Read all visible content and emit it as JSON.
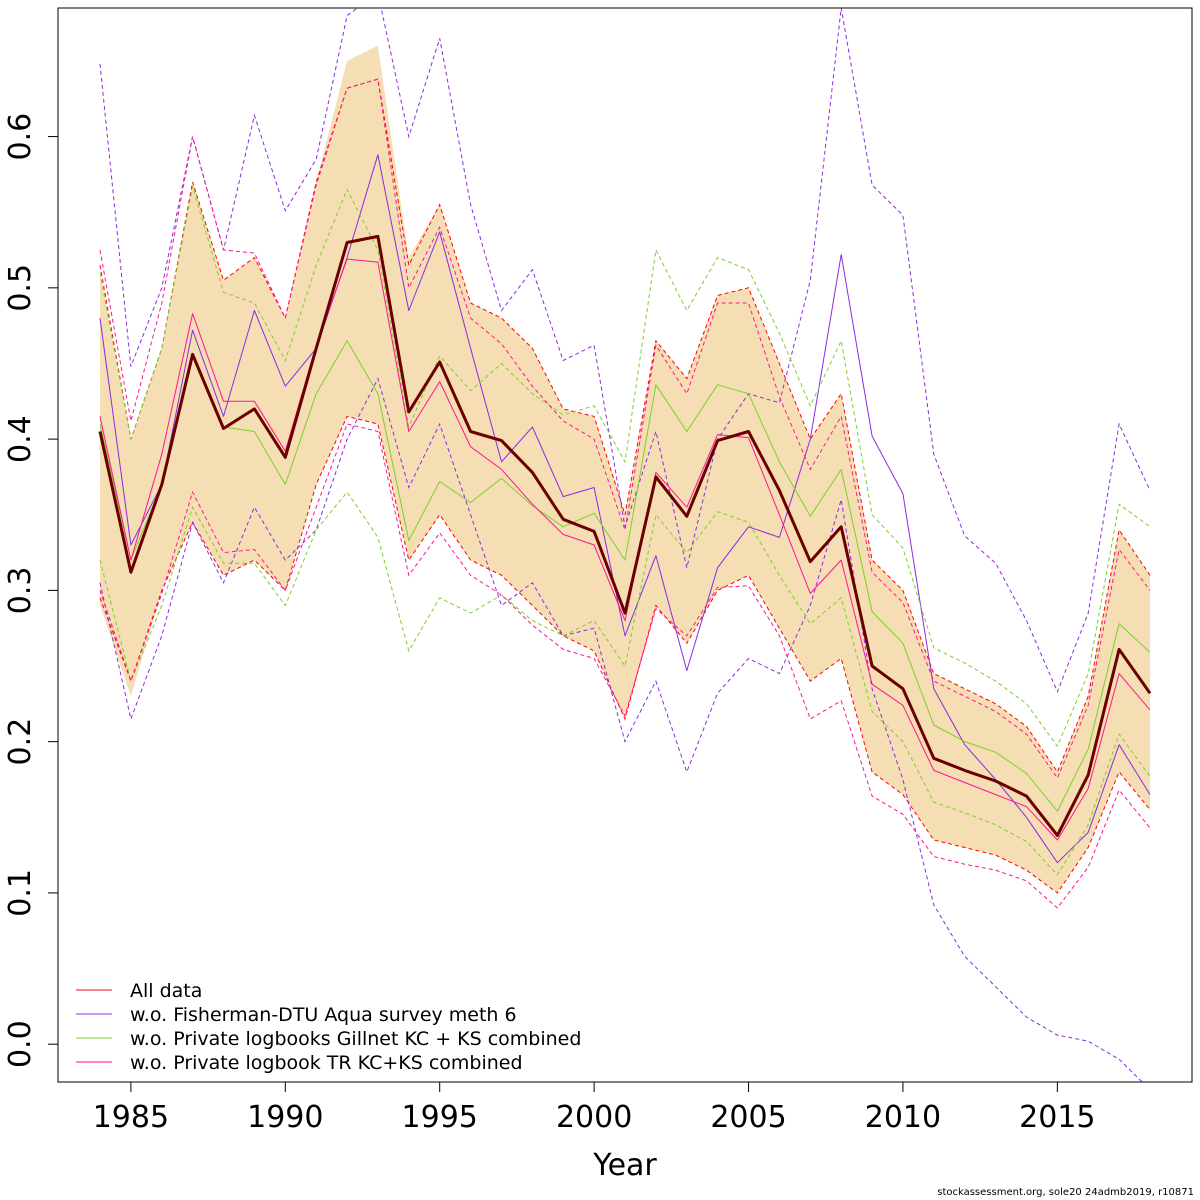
{
  "chart_data": {
    "type": "line",
    "title": "",
    "xlabel": "Year",
    "ylabel": "",
    "xlim": [
      1984,
      2018
    ],
    "ylim": [
      -0.025,
      0.685
    ],
    "x_ticks": [
      1985,
      1990,
      1995,
      2000,
      2005,
      2010,
      2015
    ],
    "y_ticks": [
      0.0,
      0.1,
      0.2,
      0.3,
      0.4,
      0.5,
      0.6
    ],
    "y_tick_labels": [
      "0.0",
      "0.1",
      "0.2",
      "0.3",
      "0.4",
      "0.5",
      "0.6"
    ],
    "grid": false,
    "legend_position": "bottom-left",
    "x": [
      1984,
      1985,
      1986,
      1987,
      1988,
      1989,
      1990,
      1991,
      1992,
      1993,
      1994,
      1995,
      1996,
      1997,
      1998,
      1999,
      2000,
      2001,
      2002,
      2003,
      2004,
      2005,
      2006,
      2007,
      2008,
      2009,
      2010,
      2011,
      2012,
      2013,
      2014,
      2015,
      2016,
      2017,
      2018
    ],
    "band": {
      "fill_color": "#f5deb3",
      "upper": [
        0.51,
        0.4,
        0.46,
        0.57,
        0.505,
        0.52,
        0.48,
        0.57,
        0.65,
        0.66,
        0.52,
        0.555,
        0.49,
        0.48,
        0.46,
        0.42,
        0.415,
        0.35,
        0.465,
        0.44,
        0.495,
        0.5,
        0.45,
        0.4,
        0.43,
        0.32,
        0.3,
        0.245,
        0.235,
        0.225,
        0.21,
        0.18,
        0.23,
        0.34,
        0.31
      ],
      "lower": [
        0.29,
        0.23,
        0.3,
        0.345,
        0.31,
        0.32,
        0.3,
        0.37,
        0.415,
        0.41,
        0.32,
        0.35,
        0.32,
        0.31,
        0.29,
        0.27,
        0.26,
        0.215,
        0.29,
        0.265,
        0.3,
        0.31,
        0.275,
        0.24,
        0.255,
        0.18,
        0.165,
        0.135,
        0.13,
        0.125,
        0.115,
        0.1,
        0.13,
        0.18,
        0.155
      ]
    },
    "series": [
      {
        "name": "All data",
        "color": "#ff0000",
        "values": [
          0.405,
          0.312,
          0.37,
          0.456,
          0.407,
          0.42,
          0.388,
          0.46,
          0.53,
          0.534,
          0.418,
          0.451,
          0.405,
          0.399,
          0.378,
          0.347,
          0.339,
          0.285,
          0.375,
          0.349,
          0.399,
          0.405,
          0.366,
          0.319,
          0.342,
          0.25,
          0.235,
          0.189,
          0.181,
          0.174,
          0.164,
          0.138,
          0.178,
          0.261,
          0.232
        ],
        "upper": [
          0.515,
          0.4,
          0.46,
          0.57,
          0.505,
          0.52,
          0.48,
          0.57,
          0.632,
          0.638,
          0.515,
          0.555,
          0.49,
          0.48,
          0.46,
          0.42,
          0.415,
          0.35,
          0.465,
          0.44,
          0.495,
          0.5,
          0.45,
          0.4,
          0.43,
          0.32,
          0.3,
          0.245,
          0.235,
          0.225,
          0.21,
          0.18,
          0.23,
          0.34,
          0.31
        ],
        "lower": [
          0.295,
          0.24,
          0.3,
          0.345,
          0.31,
          0.32,
          0.3,
          0.37,
          0.415,
          0.41,
          0.32,
          0.35,
          0.32,
          0.31,
          0.29,
          0.27,
          0.26,
          0.215,
          0.29,
          0.265,
          0.3,
          0.31,
          0.275,
          0.24,
          0.255,
          0.18,
          0.165,
          0.135,
          0.13,
          0.125,
          0.115,
          0.1,
          0.13,
          0.18,
          0.155
        ]
      },
      {
        "name": "w.o. Fisherman-DTU Aqua survey meth 6",
        "color": "#8b2be2",
        "values": [
          0.48,
          0.33,
          0.37,
          0.472,
          0.415,
          0.485,
          0.435,
          0.46,
          0.52,
          0.588,
          0.485,
          0.537,
          0.46,
          0.385,
          0.408,
          0.362,
          0.368,
          0.27,
          0.323,
          0.247,
          0.315,
          0.342,
          0.335,
          0.4,
          0.522,
          0.402,
          0.364,
          0.235,
          0.198,
          0.175,
          0.15,
          0.12,
          0.14,
          0.198,
          0.165
        ],
        "upper": [
          0.648,
          0.448,
          0.5,
          0.6,
          0.525,
          0.614,
          0.551,
          0.585,
          0.68,
          0.695,
          0.6,
          0.665,
          0.555,
          0.485,
          0.512,
          0.452,
          0.462,
          0.342,
          0.405,
          0.315,
          0.4,
          0.43,
          0.424,
          0.505,
          0.685,
          0.568,
          0.548,
          0.39,
          0.336,
          0.318,
          0.28,
          0.233,
          0.285,
          0.41,
          0.366
        ],
        "lower": [
          0.305,
          0.215,
          0.27,
          0.345,
          0.305,
          0.355,
          0.32,
          0.34,
          0.4,
          0.44,
          0.368,
          0.41,
          0.35,
          0.29,
          0.305,
          0.27,
          0.275,
          0.2,
          0.24,
          0.18,
          0.232,
          0.255,
          0.245,
          0.29,
          0.36,
          0.235,
          0.175,
          0.092,
          0.058,
          0.038,
          0.018,
          0.006,
          0.002,
          -0.01,
          -0.03
        ]
      },
      {
        "name": "w.o. Private logbooks Gillnet KC + KS combined",
        "color": "#7cd02a",
        "values": [
          0.41,
          0.32,
          0.37,
          0.455,
          0.408,
          0.405,
          0.37,
          0.43,
          0.465,
          0.43,
          0.333,
          0.372,
          0.358,
          0.374,
          0.356,
          0.342,
          0.351,
          0.32,
          0.436,
          0.405,
          0.436,
          0.43,
          0.385,
          0.349,
          0.38,
          0.286,
          0.265,
          0.211,
          0.2,
          0.193,
          0.179,
          0.154,
          0.195,
          0.278,
          0.259
        ],
        "upper": [
          0.51,
          0.4,
          0.46,
          0.567,
          0.497,
          0.49,
          0.452,
          0.515,
          0.565,
          0.525,
          0.408,
          0.455,
          0.432,
          0.45,
          0.43,
          0.416,
          0.422,
          0.385,
          0.525,
          0.485,
          0.52,
          0.512,
          0.47,
          0.422,
          0.465,
          0.35,
          0.328,
          0.262,
          0.252,
          0.24,
          0.225,
          0.197,
          0.245,
          0.357,
          0.342
        ],
        "lower": [
          0.32,
          0.24,
          0.29,
          0.355,
          0.318,
          0.318,
          0.29,
          0.34,
          0.365,
          0.335,
          0.26,
          0.295,
          0.285,
          0.297,
          0.28,
          0.27,
          0.28,
          0.25,
          0.35,
          0.325,
          0.352,
          0.345,
          0.31,
          0.278,
          0.295,
          0.22,
          0.2,
          0.16,
          0.153,
          0.145,
          0.134,
          0.112,
          0.145,
          0.205,
          0.177
        ]
      },
      {
        "name": "w.o. Private logbook TR KC+KS combined",
        "color": "#ff1493",
        "values": [
          0.415,
          0.32,
          0.39,
          0.483,
          0.425,
          0.425,
          0.392,
          0.462,
          0.519,
          0.517,
          0.405,
          0.438,
          0.395,
          0.38,
          0.357,
          0.337,
          0.33,
          0.28,
          0.378,
          0.355,
          0.403,
          0.401,
          0.35,
          0.298,
          0.32,
          0.238,
          0.224,
          0.181,
          0.173,
          0.165,
          0.157,
          0.135,
          0.169,
          0.245,
          0.221
        ],
        "upper": [
          0.525,
          0.412,
          0.49,
          0.6,
          0.525,
          0.523,
          0.48,
          0.568,
          0.632,
          0.638,
          0.5,
          0.54,
          0.48,
          0.463,
          0.435,
          0.412,
          0.4,
          0.34,
          0.462,
          0.43,
          0.49,
          0.49,
          0.428,
          0.38,
          0.415,
          0.312,
          0.292,
          0.24,
          0.23,
          0.22,
          0.205,
          0.176,
          0.224,
          0.327,
          0.3
        ],
        "lower": [
          0.3,
          0.24,
          0.298,
          0.365,
          0.325,
          0.327,
          0.3,
          0.355,
          0.41,
          0.405,
          0.31,
          0.338,
          0.31,
          0.297,
          0.277,
          0.261,
          0.255,
          0.217,
          0.288,
          0.27,
          0.302,
          0.303,
          0.27,
          0.215,
          0.227,
          0.164,
          0.152,
          0.124,
          0.119,
          0.115,
          0.108,
          0.09,
          0.117,
          0.168,
          0.143
        ]
      },
      {
        "name": "",
        "color": "#6b0000",
        "values": [
          0.405,
          0.312,
          0.37,
          0.456,
          0.407,
          0.42,
          0.388,
          0.46,
          0.53,
          0.534,
          0.418,
          0.451,
          0.405,
          0.399,
          0.378,
          0.347,
          0.339,
          0.285,
          0.375,
          0.349,
          0.399,
          0.405,
          0.366,
          0.319,
          0.342,
          0.25,
          0.235,
          0.189,
          0.181,
          0.174,
          0.164,
          0.138,
          0.178,
          0.261,
          0.232
        ]
      }
    ],
    "legend": [
      {
        "label": "All data",
        "color": "#ff0000"
      },
      {
        "label": "w.o. Fisherman-DTU Aqua survey meth 6",
        "color": "#8b2be2"
      },
      {
        "label": "w.o. Private logbooks Gillnet KC + KS combined",
        "color": "#7cd02a"
      },
      {
        "label": "w.o. Private logbook TR KC+KS combined",
        "color": "#ff1493"
      }
    ]
  },
  "footer": "stockassessment.org, sole20  24admb2019, r10871"
}
